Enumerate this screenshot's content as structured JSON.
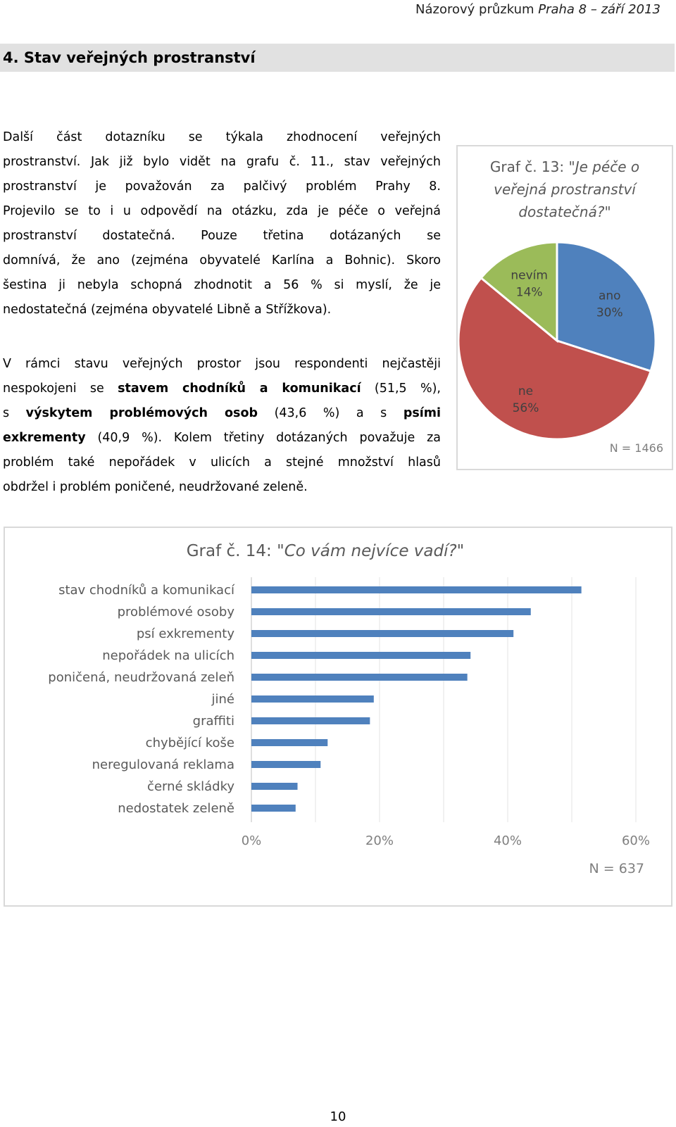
{
  "header": {
    "text_plain": "Názorový průzkum ",
    "text_italic": "Praha 8 – září 2013"
  },
  "section": {
    "title": "4. Stav veřejných prostranství"
  },
  "paragraph1": {
    "lines": [
      "Další část dotazníku se týkala zhodnocení veřejných",
      "prostranství. Jak již bylo vidět na grafu č. 11., stav veřejných",
      "prostranství je považován za palčivý problém Prahy 8.",
      "Projevilo se to i u odpovědí na otázku, zda je péče o veřejná",
      "prostranství dostatečná. Pouze třetina dotázaných se",
      "domnívá, že ano (zejména obyvatelé Karlína a Bohnic). Skoro",
      "šestina ji nebyla schopná zhodnotit a 56 % si myslí, že je",
      "nedostatečná (zejména obyvatelé Libně a Střížkova)."
    ]
  },
  "paragraph2": {
    "l1": "V rámci stavu veřejných prostor jsou respondenti nejčastěji",
    "l2a": "nespokojeni se ",
    "l2b": "stavem chodníků a komunikací",
    "l2c": " (51,5 %),",
    "l3a": "s ",
    "l3b": "výskytem problémových osob",
    "l3c": " (43,6 %) a s ",
    "l3d": "psími",
    "l4a": "exkrementy",
    "l4b": " (40,9 %). Kolem třetiny dotázaných považuje za",
    "l5": "problém také nepořádek v ulicích a stejné množství hlasů",
    "l6": "obdržel i problém poničené, neudržované zeleně."
  },
  "chart_data": [
    {
      "type": "pie",
      "title_lines": [
        "Graf č. 13: \"",
        "Je péče o",
        "veřejná prostranství",
        "dostatečná?",
        "\""
      ],
      "slices": [
        {
          "label": "ano",
          "value": 30,
          "value_label": "30%",
          "color": "#4f81bd"
        },
        {
          "label": "ne",
          "value": 56,
          "value_label": "56%",
          "color": "#c0504d"
        },
        {
          "label": "nevím",
          "value": 14,
          "value_label": "14%",
          "color": "#9bbb59"
        }
      ],
      "note": "N = 1466"
    },
    {
      "type": "bar",
      "orientation": "horizontal",
      "title_plain": "Graf č. 14: ",
      "title_italic": "\"Co vám nejvíce vadí?\"",
      "categories": [
        "stav chodníků a komunikací",
        "problémové osoby",
        "psí exkrementy",
        "nepořádek na ulicích",
        "poničená, neudržovaná zeleň",
        "jiné",
        "graffiti",
        "chybějící koše",
        "neregulovaná reklama",
        "černé skládky",
        "nedostatek zeleně"
      ],
      "values": [
        51.5,
        43.6,
        40.9,
        34.2,
        33.7,
        19.1,
        18.5,
        11.9,
        10.8,
        7.2,
        6.9
      ],
      "xlim": [
        0,
        60
      ],
      "xticks": [
        "0%",
        "20%",
        "40%",
        "60%"
      ],
      "bar_color": "#4f81bd",
      "grid": true,
      "note": "N = 637"
    }
  ],
  "page_number": "10"
}
